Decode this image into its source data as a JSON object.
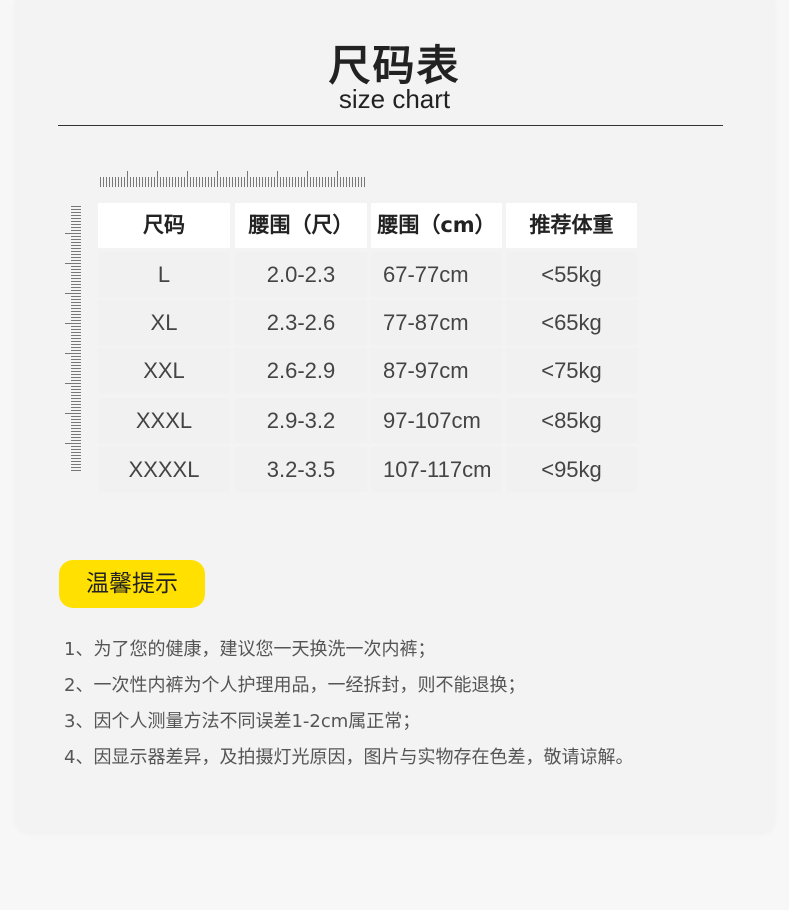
{
  "header": {
    "title": "尺码表",
    "subtitle": "size chart"
  },
  "table": {
    "headers": [
      "尺码",
      "腰围（尺）",
      "腰围（cm）",
      "推荐体重"
    ],
    "rows": [
      [
        "L",
        "2.0-2.3",
        "67-77cm",
        "<55kg"
      ],
      [
        "XL",
        "2.3-2.6",
        "77-87cm",
        "<65kg"
      ],
      [
        "XXL",
        "2.6-2.9",
        "87-97cm",
        "<75kg"
      ],
      [
        "XXXL",
        "2.9-3.2",
        "97-107cm",
        "<85kg"
      ],
      [
        "XXXXL",
        "3.2-3.5",
        "107-117cm",
        "<95kg"
      ]
    ]
  },
  "tips": {
    "label": "温馨提示",
    "accent": "#ffe000",
    "items": [
      "1、为了您的健康，建议您一天换洗一次内裤；",
      "2、一次性内裤为个人护理用品，一经拆封，则不能退换；",
      "3、因个人测量方法不同误差1-2cm属正常；",
      "4、因显示器差异，及拍摄灯光原因，图片与实物存在色差，敬请谅解。"
    ]
  }
}
